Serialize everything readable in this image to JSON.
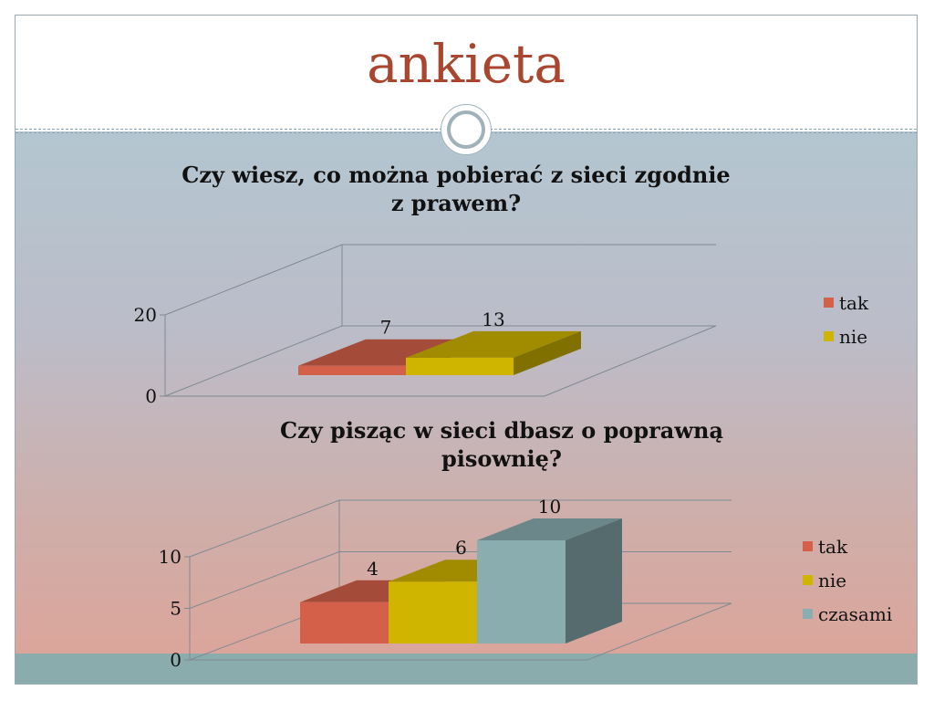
{
  "slide": {
    "title": "ankieta"
  },
  "chart_data": [
    {
      "type": "bar",
      "title": "Czy wiesz, co można pobierać z sieci zgodnie z prawem?",
      "title_lines": [
        "Czy wiesz, co można pobierać z sieci zgodnie",
        "z prawem?"
      ],
      "categories": [
        "tak",
        "nie"
      ],
      "values": [
        7,
        13
      ],
      "colors": [
        "#d4604a",
        "#cfb400"
      ],
      "yticks": [
        0,
        20
      ],
      "ylim": [
        0,
        20
      ],
      "grid": true,
      "legend_position": "right",
      "3d": true
    },
    {
      "type": "bar",
      "title": "Czy pisząc w sieci dbasz o poprawną pisownię?",
      "title_lines": [
        "Czy pisząc w sieci dbasz o poprawną",
        "pisownię?"
      ],
      "categories": [
        "tak",
        "nie",
        "czasami"
      ],
      "values": [
        4,
        6,
        10
      ],
      "colors": [
        "#d4604a",
        "#cfb400",
        "#8aadaf"
      ],
      "yticks": [
        0,
        5,
        10
      ],
      "ylim": [
        0,
        10
      ],
      "grid": true,
      "legend_position": "right",
      "3d": true
    }
  ]
}
